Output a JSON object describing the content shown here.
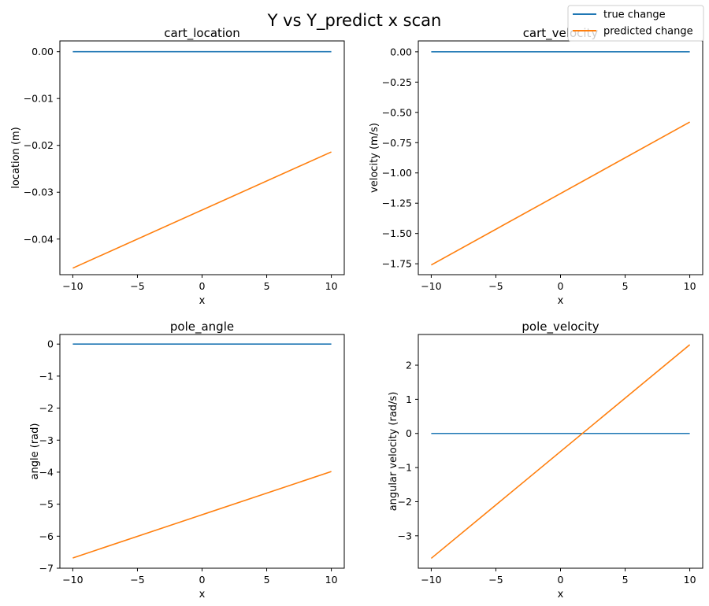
{
  "suptitle": "Y vs Y_predict x scan",
  "legend": {
    "placement": "top-right",
    "entries": [
      {
        "label": "true change",
        "color": "#1f77b4"
      },
      {
        "label": "predicted change",
        "color": "#ff7f0e"
      }
    ]
  },
  "chart_data": [
    {
      "type": "line",
      "title": "cart_location",
      "xlabel": "x",
      "ylabel": "location (m)",
      "xlim": [
        -11,
        11
      ],
      "ylim": [
        -0.0476,
        0.0023
      ],
      "xticks": [
        -10,
        -5,
        0,
        5,
        10
      ],
      "xtick_labels": [
        "−10",
        "−5",
        "0",
        "5",
        "10"
      ],
      "yticks": [
        0.0,
        -0.01,
        -0.02,
        -0.03,
        -0.04
      ],
      "ytick_labels": [
        "0.00",
        "−0.01",
        "−0.02",
        "−0.03",
        "−0.04"
      ],
      "series": [
        {
          "name": "true change",
          "color": "#1f77b4",
          "x": [
            -10,
            10
          ],
          "y": [
            0.0,
            0.0
          ]
        },
        {
          "name": "predicted change",
          "color": "#ff7f0e",
          "x": [
            -10,
            10
          ],
          "y": [
            -0.0462,
            -0.0214
          ]
        }
      ]
    },
    {
      "type": "line",
      "title": "cart_velocity",
      "xlabel": "x",
      "ylabel": "velocity (m/s)",
      "xlim": [
        -11,
        11
      ],
      "ylim": [
        -1.84,
        0.09
      ],
      "xticks": [
        -10,
        -5,
        0,
        5,
        10
      ],
      "xtick_labels": [
        "−10",
        "−5",
        "0",
        "5",
        "10"
      ],
      "yticks": [
        0.0,
        -0.25,
        -0.5,
        -0.75,
        -1.0,
        -1.25,
        -1.5,
        -1.75
      ],
      "ytick_labels": [
        "0.00",
        "−0.25",
        "−0.50",
        "−0.75",
        "−1.00",
        "−1.25",
        "−1.50",
        "−1.75"
      ],
      "series": [
        {
          "name": "true change",
          "color": "#1f77b4",
          "x": [
            -10,
            10
          ],
          "y": [
            0.0,
            0.0
          ]
        },
        {
          "name": "predicted change",
          "color": "#ff7f0e",
          "x": [
            -10,
            10
          ],
          "y": [
            -1.76,
            -0.58
          ]
        }
      ]
    },
    {
      "type": "line",
      "title": "pole_angle",
      "xlabel": "x",
      "ylabel": "angle (rad)",
      "xlim": [
        -11,
        11
      ],
      "ylim": [
        -7.0,
        0.3
      ],
      "xticks": [
        -10,
        -5,
        0,
        5,
        10
      ],
      "xtick_labels": [
        "−10",
        "−5",
        "0",
        "5",
        "10"
      ],
      "yticks": [
        0,
        -1,
        -2,
        -3,
        -4,
        -5,
        -6,
        -7
      ],
      "ytick_labels": [
        "0",
        "−1",
        "−2",
        "−3",
        "−4",
        "−5",
        "−6",
        "−7"
      ],
      "series": [
        {
          "name": "true change",
          "color": "#1f77b4",
          "x": [
            -10,
            10
          ],
          "y": [
            0.0,
            0.0
          ]
        },
        {
          "name": "predicted change",
          "color": "#ff7f0e",
          "x": [
            -10,
            10
          ],
          "y": [
            -6.68,
            -3.98
          ]
        }
      ]
    },
    {
      "type": "line",
      "title": "pole_velocity",
      "xlabel": "x",
      "ylabel": "angular velocity (rad/s)",
      "xlim": [
        -11,
        11
      ],
      "ylim": [
        -3.95,
        2.9
      ],
      "xticks": [
        -10,
        -5,
        0,
        5,
        10
      ],
      "xtick_labels": [
        "−10",
        "−5",
        "0",
        "5",
        "10"
      ],
      "yticks": [
        2,
        1,
        0,
        -1,
        -2,
        -3
      ],
      "ytick_labels": [
        "2",
        "1",
        "0",
        "−1",
        "−2",
        "−3"
      ],
      "series": [
        {
          "name": "true change",
          "color": "#1f77b4",
          "x": [
            -10,
            10
          ],
          "y": [
            0.0,
            0.0
          ]
        },
        {
          "name": "predicted change",
          "color": "#ff7f0e",
          "x": [
            -10,
            10
          ],
          "y": [
            -3.66,
            2.6
          ]
        }
      ]
    }
  ]
}
